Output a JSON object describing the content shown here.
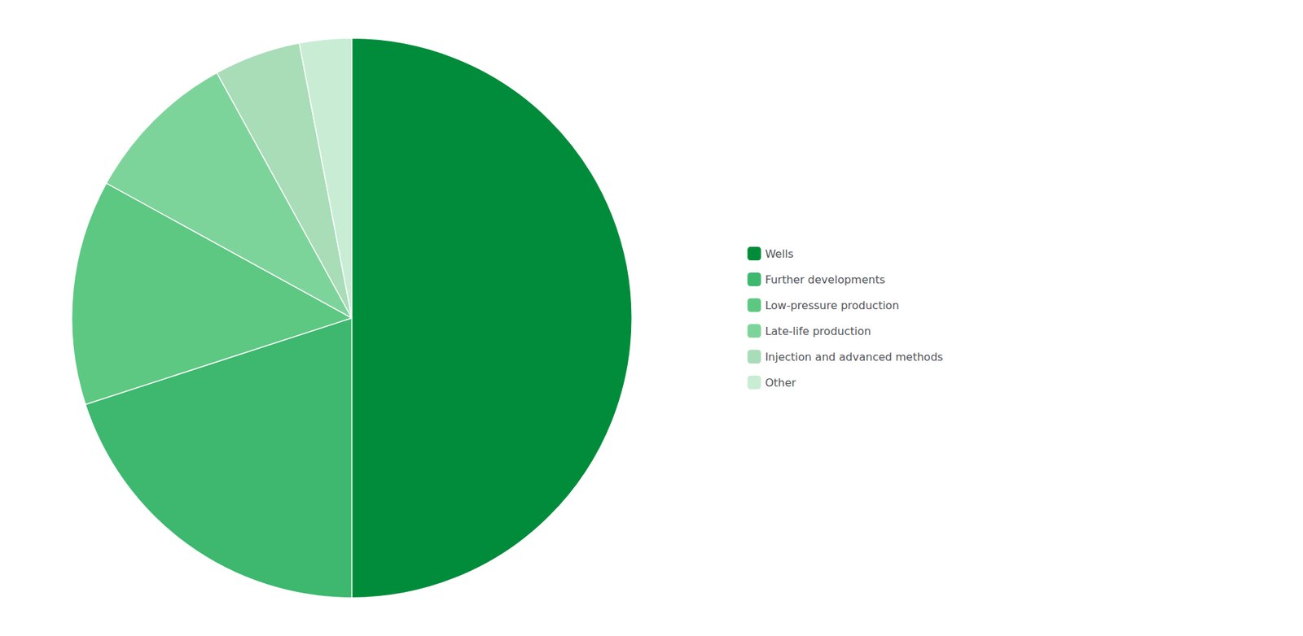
{
  "chart_data": {
    "type": "pie",
    "categories": [
      "Wells",
      "Further developments",
      "Low-pressure production",
      "Late-life production",
      "Injection and advanced methods",
      "Other"
    ],
    "values": [
      50,
      20,
      13,
      9,
      5,
      3
    ],
    "colors": [
      "#008C3A",
      "#3DB86E",
      "#5DC882",
      "#7DD49A",
      "#A8DDB8",
      "#C8EDD4"
    ],
    "legend": "right"
  }
}
